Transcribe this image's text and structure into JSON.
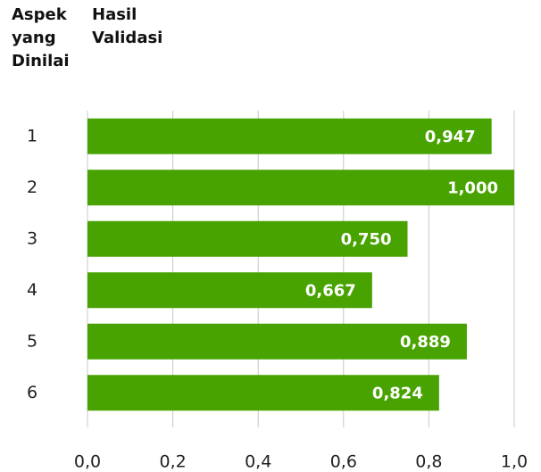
{
  "chart_data": {
    "type": "bar",
    "orientation": "horizontal",
    "y_label": "Aspek yang Dinilai",
    "x_label": "Hasil Validasi",
    "categories": [
      "1",
      "2",
      "3",
      "4",
      "5",
      "6"
    ],
    "values": [
      0.947,
      1.0,
      0.75,
      0.667,
      0.889,
      0.824
    ],
    "value_labels": [
      "0,947",
      "1,000",
      "0,750",
      "0,667",
      "0,889",
      "0,824"
    ],
    "color": "#48a300",
    "xlim": [
      0,
      1
    ],
    "xticks": [
      {
        "value": 0,
        "label": "0,0"
      },
      {
        "value": 0.2,
        "label": "0,2"
      },
      {
        "value": 0.4,
        "label": "0,4"
      },
      {
        "value": 0.6,
        "label": "0,6"
      },
      {
        "value": 0.8,
        "label": "0,8"
      },
      {
        "value": 1,
        "label": "1,0"
      }
    ],
    "grid": true
  }
}
